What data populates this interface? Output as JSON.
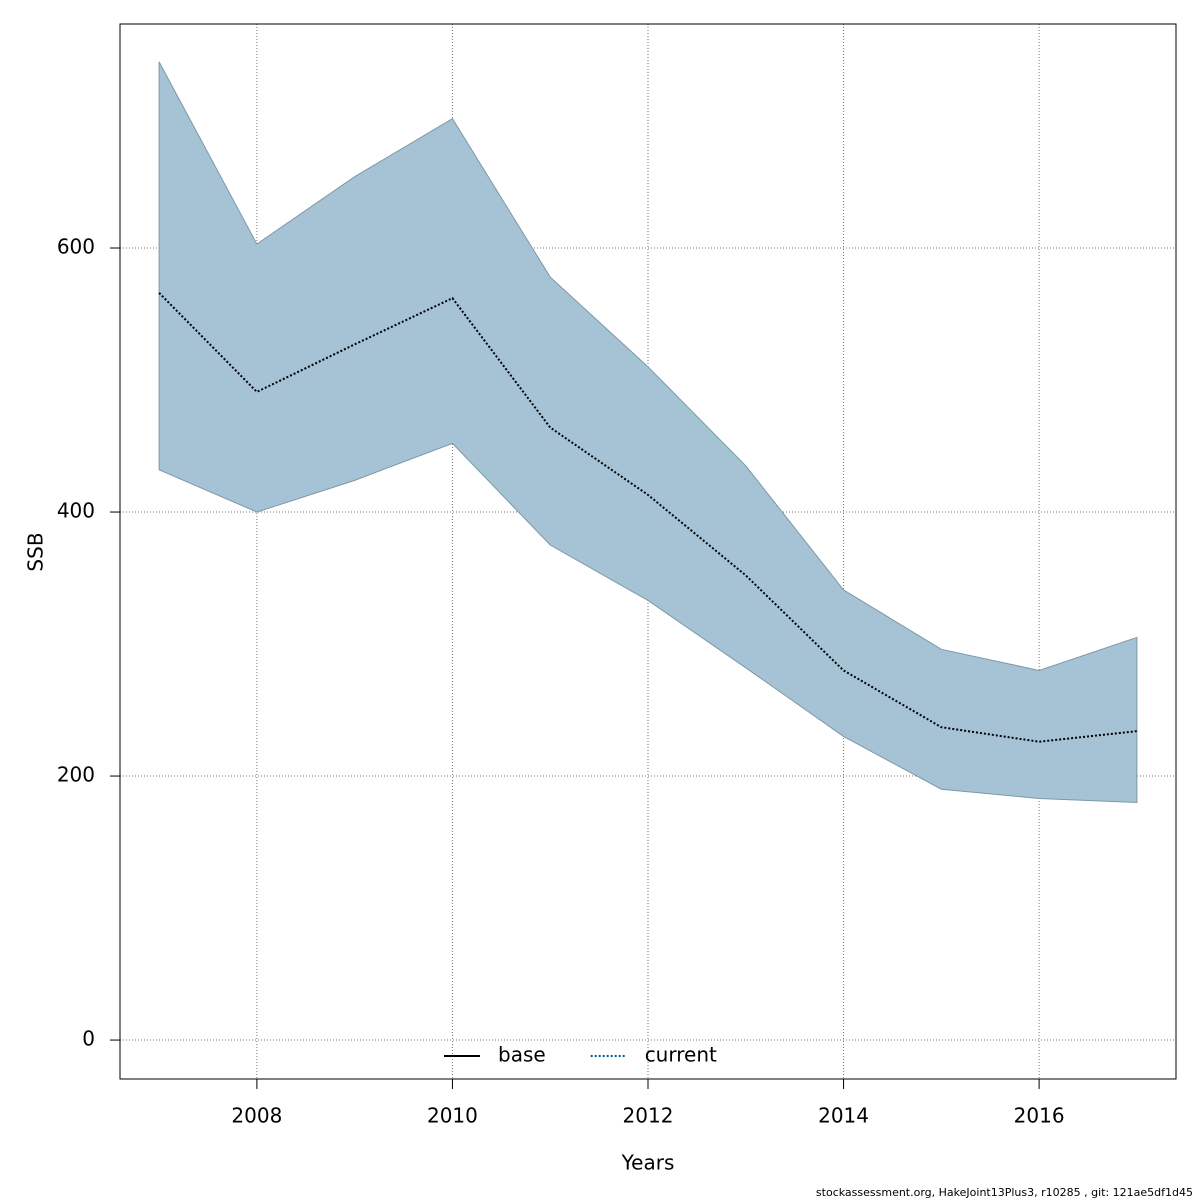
{
  "chart_data": {
    "type": "line",
    "x_label": "Years",
    "y_label": "SSB",
    "footnote": "stockassessment.org, HakeJoint13Plus3, r10285 , git: 121ae5df1d45",
    "x": [
      2007,
      2008,
      2009,
      2010,
      2011,
      2012,
      2013,
      2014,
      2015,
      2016,
      2017
    ],
    "series": [
      {
        "name": "current",
        "color": "#005a8c",
        "band_color": "#a5c3d4",
        "values": [
          566,
          491,
          527,
          562,
          464,
          413,
          352,
          280,
          237,
          226,
          234
        ],
        "lower": [
          432,
          400,
          424,
          452,
          375,
          333,
          282,
          230,
          190,
          183,
          180
        ],
        "upper": [
          741,
          603,
          654,
          698,
          578,
          510,
          435,
          341,
          296,
          280,
          305
        ]
      }
    ],
    "legend": [
      {
        "name": "base",
        "color": "#000000",
        "dash": "solid"
      },
      {
        "name": "current",
        "color": "#005a8c",
        "dash": "dotted"
      }
    ],
    "legend_position": "bottom",
    "xlim": [
      2006.6,
      2017.4
    ],
    "ylim": [
      -29.5,
      769.7
    ],
    "xticks": [
      2008,
      2010,
      2012,
      2014,
      2016
    ],
    "yticks": [
      0,
      200,
      400,
      600
    ],
    "grid": true
  }
}
